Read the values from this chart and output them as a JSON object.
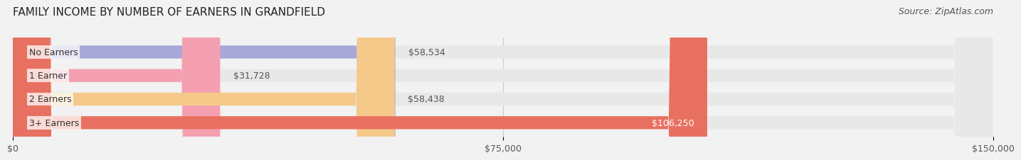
{
  "title": "FAMILY INCOME BY NUMBER OF EARNERS IN GRANDFIELD",
  "source": "Source: ZipAtlas.com",
  "categories": [
    "No Earners",
    "1 Earner",
    "2 Earners",
    "3+ Earners"
  ],
  "values": [
    58534,
    31728,
    58438,
    106250
  ],
  "bar_colors": [
    "#a8a8d8",
    "#f4a0b0",
    "#f5c98a",
    "#e87060"
  ],
  "value_labels": [
    "$58,534",
    "$31,728",
    "$58,438",
    "$106,250"
  ],
  "label_inside": [
    false,
    false,
    false,
    true
  ],
  "xlim": [
    0,
    150000
  ],
  "xticks": [
    0,
    75000,
    150000
  ],
  "xtick_labels": [
    "$0",
    "$75,000",
    "$150,000"
  ],
  "background_color": "#f2f2f2",
  "bar_background_color": "#e8e8e8",
  "title_fontsize": 11,
  "source_fontsize": 9,
  "label_fontsize": 9,
  "tick_fontsize": 9,
  "bar_height": 0.55,
  "bar_label_color_inside": "#ffffff",
  "bar_label_color_outside": "#555555"
}
